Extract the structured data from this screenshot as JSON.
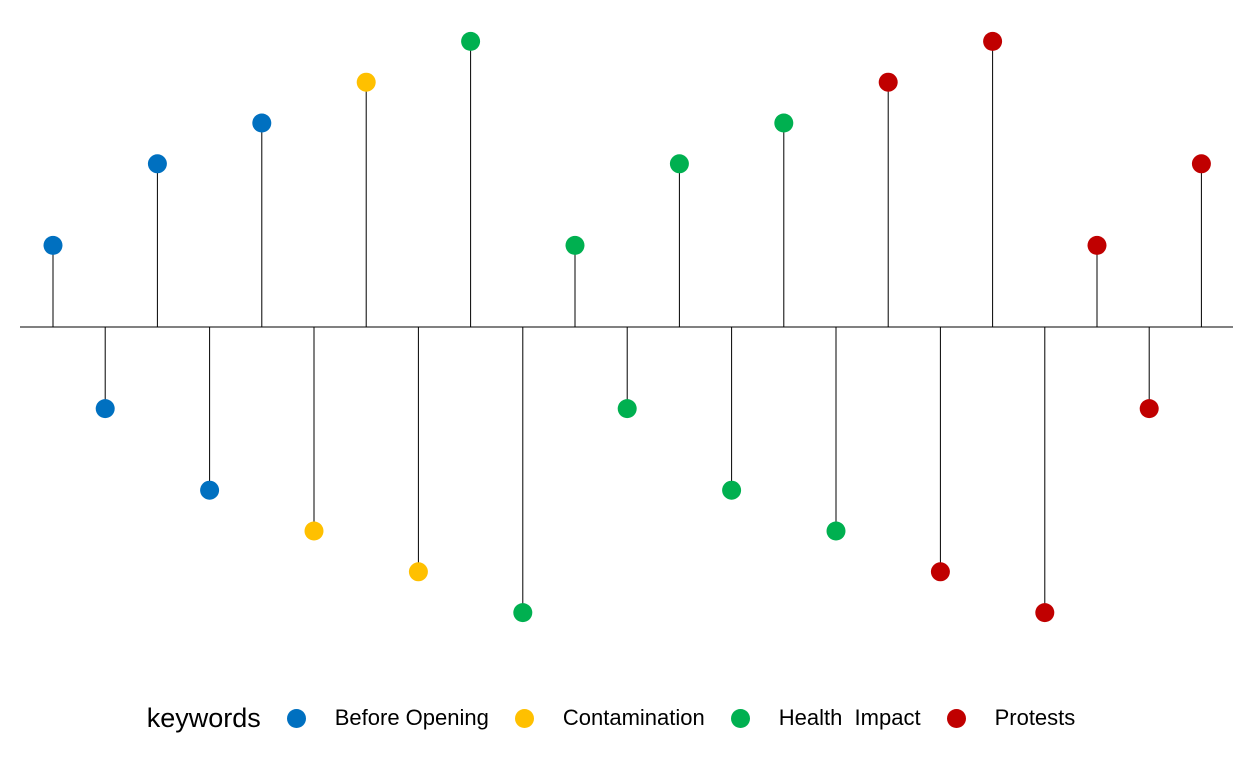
{
  "chart_data": {
    "type": "lollipop",
    "title": "",
    "xlabel": "",
    "ylabel": "",
    "ylim": [
      -1.75,
      1.75
    ],
    "grid": false,
    "legend_position": "bottom",
    "legend_title": "keywords",
    "series": [
      {
        "name": "Before Opening",
        "color": "#0070C0"
      },
      {
        "name": "Contamination",
        "color": "#FFC000"
      },
      {
        "name": "Health  Impact",
        "color": "#00B050"
      },
      {
        "name": "Protests",
        "color": "#C00000"
      }
    ],
    "points": [
      {
        "x": 1,
        "y": 0.5,
        "series": "Before Opening"
      },
      {
        "x": 2,
        "y": -0.5,
        "series": "Before Opening"
      },
      {
        "x": 3,
        "y": 1.0,
        "series": "Before Opening"
      },
      {
        "x": 4,
        "y": -1.0,
        "series": "Before Opening"
      },
      {
        "x": 5,
        "y": 1.25,
        "series": "Before Opening"
      },
      {
        "x": 6,
        "y": -1.25,
        "series": "Contamination"
      },
      {
        "x": 7,
        "y": 1.5,
        "series": "Contamination"
      },
      {
        "x": 8,
        "y": -1.5,
        "series": "Contamination"
      },
      {
        "x": 9,
        "y": 1.75,
        "series": "Health  Impact"
      },
      {
        "x": 10,
        "y": -1.75,
        "series": "Health  Impact"
      },
      {
        "x": 11,
        "y": 0.5,
        "series": "Health  Impact"
      },
      {
        "x": 12,
        "y": -0.5,
        "series": "Health  Impact"
      },
      {
        "x": 13,
        "y": 1.0,
        "series": "Health  Impact"
      },
      {
        "x": 14,
        "y": -1.0,
        "series": "Health  Impact"
      },
      {
        "x": 15,
        "y": 1.25,
        "series": "Health  Impact"
      },
      {
        "x": 16,
        "y": -1.25,
        "series": "Health  Impact"
      },
      {
        "x": 17,
        "y": 1.5,
        "series": "Protests"
      },
      {
        "x": 18,
        "y": -1.5,
        "series": "Protests"
      },
      {
        "x": 19,
        "y": 1.75,
        "series": "Protests"
      },
      {
        "x": 20,
        "y": -1.75,
        "series": "Protests"
      },
      {
        "x": 21,
        "y": 0.5,
        "series": "Protests"
      },
      {
        "x": 22,
        "y": -0.5,
        "series": "Protests"
      },
      {
        "x": 23,
        "y": 1.0,
        "series": "Protests"
      }
    ]
  }
}
